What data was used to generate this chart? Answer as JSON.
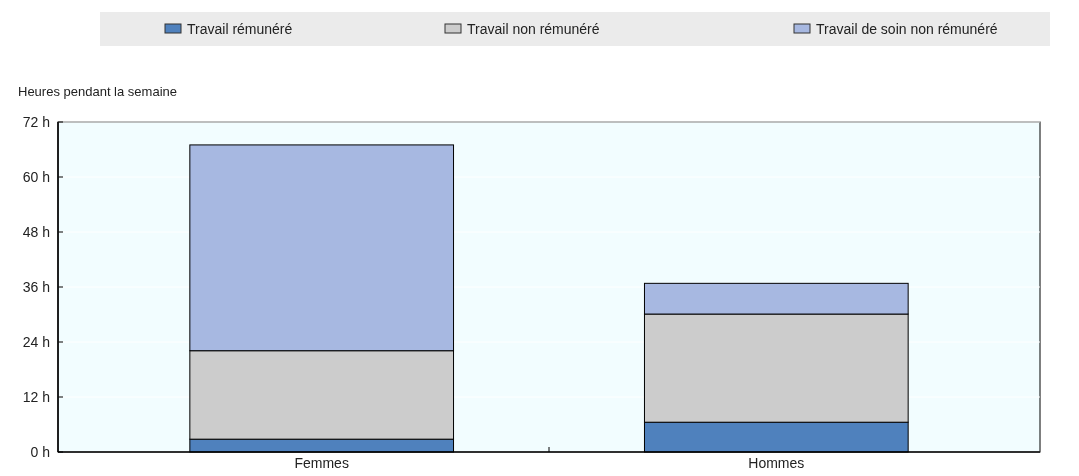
{
  "chart_data": {
    "type": "bar",
    "stacked": true,
    "ylabel": "Heures pendant la semaine",
    "categories": [
      "Femmes",
      "Hommes"
    ],
    "series": [
      {
        "name": "Travail rémunéré",
        "color": "#4f81bd",
        "values": [
          2.8,
          6.5
        ]
      },
      {
        "name": "Travail non rémunéré",
        "color": "#cccccc",
        "values": [
          19.3,
          23.6
        ]
      },
      {
        "name": "Travail de soin non rémunéré",
        "color": "#a7b8e1",
        "values": [
          44.9,
          6.7
        ]
      }
    ],
    "ylim": [
      0,
      72
    ],
    "yticks": [
      {
        "value": 0,
        "label": "0 h"
      },
      {
        "value": 12,
        "label": "12 h"
      },
      {
        "value": 24,
        "label": "24 h"
      },
      {
        "value": 36,
        "label": "36 h"
      },
      {
        "value": 48,
        "label": "48 h"
      },
      {
        "value": 60,
        "label": "60 h"
      },
      {
        "value": 72,
        "label": "72 h"
      }
    ],
    "grid": "y",
    "legend": "top"
  }
}
